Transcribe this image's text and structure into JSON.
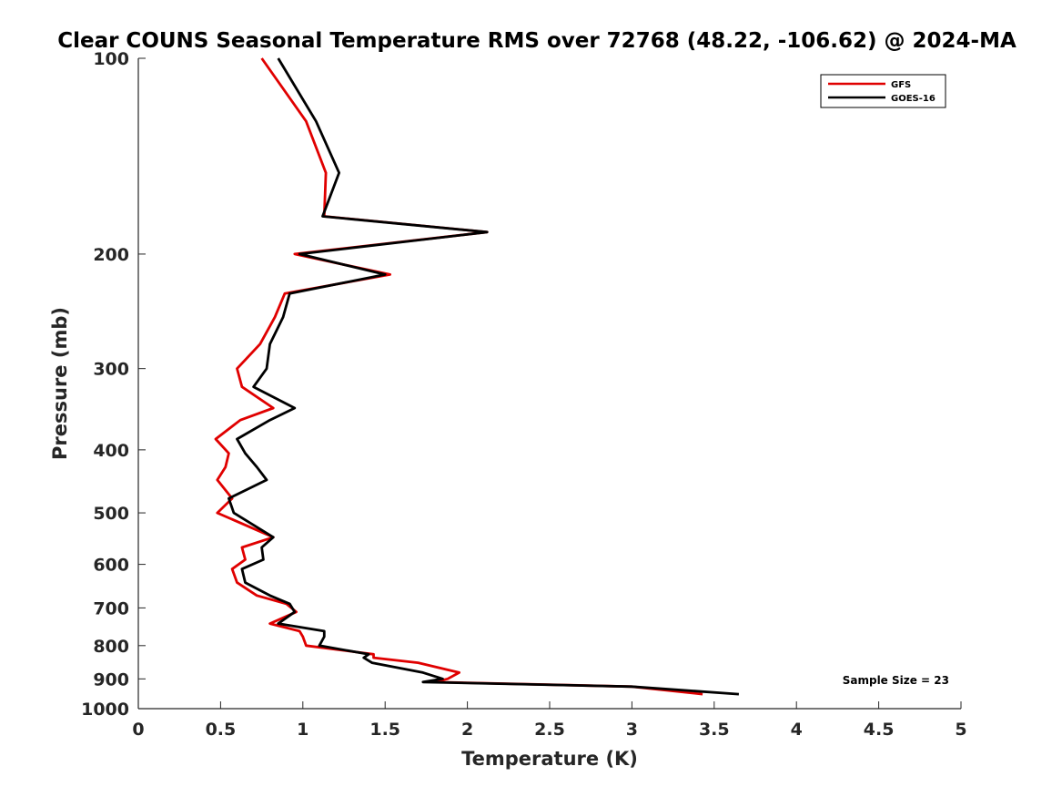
{
  "chart_data": {
    "type": "line",
    "title": "Clear COUNS Seasonal Temperature RMS over 72768 (48.22, -106.62) @ 2024-MA",
    "xlabel": "Temperature (K)",
    "ylabel": "Pressure (mb)",
    "xlim": [
      0,
      5
    ],
    "ylim": [
      100,
      1000
    ],
    "yscale": "log",
    "y_reversed": true,
    "xticks": [
      0,
      0.5,
      1,
      1.5,
      2,
      2.5,
      3,
      3.5,
      4,
      4.5,
      5
    ],
    "xtick_labels": [
      "0",
      "0.5",
      "1",
      "1.5",
      "2",
      "2.5",
      "3",
      "3.5",
      "4",
      "4.5",
      "5"
    ],
    "yticks": [
      100,
      200,
      300,
      400,
      500,
      600,
      700,
      800,
      900,
      1000
    ],
    "ytick_labels": [
      "100",
      "200",
      "300",
      "400",
      "500",
      "600",
      "700",
      "800",
      "900",
      "1000"
    ],
    "legend_position": "top-right",
    "annotation": "Sample Size = 23",
    "series": [
      {
        "name": "GFS",
        "color": "#e00000",
        "pressure": [
          100,
          125,
          150,
          175,
          185,
          200,
          215,
          230,
          250,
          275,
          300,
          320,
          345,
          360,
          385,
          405,
          425,
          445,
          475,
          500,
          545,
          565,
          590,
          610,
          640,
          670,
          690,
          710,
          740,
          760,
          775,
          800,
          825,
          835,
          850,
          880,
          900,
          910,
          925,
          950
        ],
        "values": [
          0.75,
          1.02,
          1.14,
          1.13,
          2.12,
          0.95,
          1.53,
          0.89,
          0.83,
          0.74,
          0.6,
          0.63,
          0.82,
          0.62,
          0.47,
          0.55,
          0.53,
          0.48,
          0.57,
          0.48,
          0.82,
          0.63,
          0.65,
          0.57,
          0.6,
          0.72,
          0.9,
          0.96,
          0.8,
          0.98,
          1.0,
          1.02,
          1.43,
          1.43,
          1.7,
          1.95,
          1.88,
          1.8,
          3.0,
          3.43
        ]
      },
      {
        "name": "GOES-16",
        "color": "#000000",
        "pressure": [
          100,
          125,
          150,
          175,
          185,
          200,
          215,
          230,
          250,
          275,
          300,
          320,
          345,
          360,
          385,
          405,
          425,
          445,
          475,
          500,
          545,
          565,
          590,
          610,
          640,
          670,
          690,
          710,
          740,
          760,
          775,
          800,
          825,
          835,
          850,
          880,
          900,
          910,
          925,
          950
        ],
        "values": [
          0.85,
          1.08,
          1.22,
          1.12,
          2.12,
          0.98,
          1.5,
          0.92,
          0.88,
          0.8,
          0.78,
          0.7,
          0.95,
          0.8,
          0.6,
          0.65,
          0.72,
          0.78,
          0.55,
          0.58,
          0.82,
          0.75,
          0.76,
          0.63,
          0.65,
          0.8,
          0.92,
          0.95,
          0.85,
          1.13,
          1.13,
          1.1,
          1.4,
          1.37,
          1.42,
          1.73,
          1.85,
          1.73,
          3.0,
          3.65
        ]
      }
    ]
  }
}
